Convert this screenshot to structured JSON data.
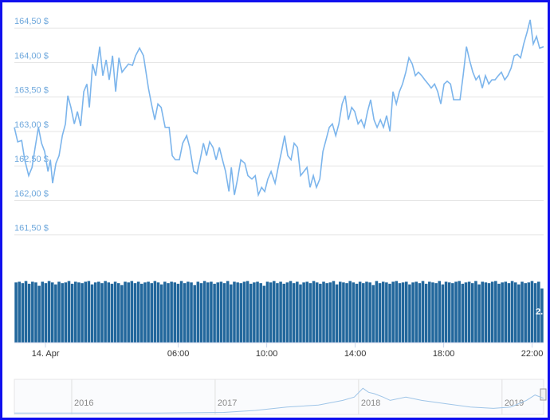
{
  "chart_data": [
    {
      "type": "line",
      "color": "#7cb5ec",
      "x": [
        -1.41,
        -1.26,
        -1.08,
        -0.94,
        -0.76,
        -0.61,
        -0.47,
        -0.32,
        -0.18,
        -0.04,
        0.11,
        0.22,
        0.32,
        0.47,
        0.61,
        0.76,
        0.9,
        1.01,
        1.15,
        1.3,
        1.44,
        1.59,
        1.73,
        1.87,
        1.98,
        2.13,
        2.27,
        2.45,
        2.59,
        2.74,
        2.88,
        3.03,
        3.17,
        3.32,
        3.46,
        3.6,
        3.75,
        3.93,
        4.07,
        4.25,
        4.43,
        4.65,
        4.79,
        4.94,
        5.08,
        5.23,
        5.41,
        5.59,
        5.73,
        5.87,
        6.05,
        6.2,
        6.38,
        6.52,
        6.7,
        6.85,
        6.99,
        7.14,
        7.28,
        7.42,
        7.57,
        7.71,
        7.86,
        8.0,
        8.14,
        8.29,
        8.4,
        8.54,
        8.68,
        8.83,
        9.01,
        9.15,
        9.33,
        9.48,
        9.62,
        9.77,
        9.91,
        10.05,
        10.2,
        10.38,
        10.52,
        10.67,
        10.81,
        10.95,
        11.1,
        11.24,
        11.39,
        11.53,
        11.68,
        11.82,
        11.96,
        12.11,
        12.25,
        12.4,
        12.54,
        12.68,
        12.83,
        12.97,
        13.12,
        13.26,
        13.41,
        13.55,
        13.69,
        13.84,
        13.98,
        14.13,
        14.27,
        14.41,
        14.56,
        14.7,
        14.85,
        14.99,
        15.14,
        15.28,
        15.42,
        15.57,
        15.71,
        15.86,
        16.0,
        16.14,
        16.29,
        16.43,
        16.58,
        16.72,
        16.86,
        17.01,
        17.15,
        17.3,
        17.44,
        17.59,
        17.73,
        17.87,
        18.02,
        18.16,
        18.31,
        18.45,
        18.59,
        18.74,
        18.88,
        19.03,
        19.17,
        19.32,
        19.46,
        19.6,
        19.75,
        19.89,
        20.04,
        20.18,
        20.32,
        20.47,
        20.61,
        20.76,
        20.9,
        21.05,
        21.19,
        21.33,
        21.48,
        21.62,
        21.77,
        21.91,
        22.05,
        22.2,
        22.34,
        22.52
      ],
      "values": [
        163.06,
        162.85,
        162.87,
        162.59,
        162.36,
        162.48,
        162.77,
        163.06,
        162.83,
        162.71,
        162.42,
        162.59,
        162.25,
        162.54,
        162.65,
        162.94,
        163.11,
        163.52,
        163.35,
        163.11,
        163.29,
        163.08,
        163.58,
        163.69,
        163.35,
        163.98,
        163.81,
        164.23,
        163.81,
        164.04,
        163.75,
        164.1,
        163.58,
        164.07,
        163.86,
        163.92,
        163.98,
        163.96,
        164.1,
        164.21,
        164.1,
        163.63,
        163.4,
        163.17,
        163.4,
        163.35,
        163.06,
        163.06,
        162.65,
        162.59,
        162.59,
        162.83,
        162.94,
        162.77,
        162.42,
        162.39,
        162.59,
        162.83,
        162.65,
        162.85,
        162.77,
        162.59,
        162.77,
        162.59,
        162.42,
        162.13,
        162.48,
        162.08,
        162.31,
        162.59,
        162.54,
        162.36,
        162.31,
        162.36,
        162.08,
        162.19,
        162.13,
        162.31,
        162.42,
        162.25,
        162.48,
        162.71,
        162.94,
        162.65,
        162.59,
        162.83,
        162.77,
        162.36,
        162.42,
        162.48,
        162.19,
        162.36,
        162.19,
        162.31,
        162.71,
        162.88,
        163.06,
        163.11,
        162.94,
        163.11,
        163.4,
        163.52,
        163.17,
        163.35,
        163.29,
        163.11,
        163.17,
        163.06,
        163.29,
        163.46,
        163.17,
        163.06,
        163.17,
        163.06,
        163.23,
        163.0,
        163.58,
        163.4,
        163.58,
        163.69,
        163.86,
        164.07,
        163.98,
        163.81,
        163.86,
        163.81,
        163.75,
        163.69,
        163.63,
        163.69,
        163.58,
        163.4,
        163.69,
        163.73,
        163.69,
        163.46,
        163.46,
        163.46,
        163.81,
        164.23,
        164.04,
        163.86,
        163.75,
        163.81,
        163.63,
        163.81,
        163.69,
        163.75,
        163.75,
        163.81,
        163.86,
        163.75,
        163.81,
        163.92,
        164.1,
        164.12,
        164.07,
        164.27,
        164.44,
        164.62,
        164.27,
        164.38,
        164.21,
        164.23
      ],
      "xlim": [
        -1.41,
        22.52
      ],
      "xticks": [
        {
          "value": 0,
          "label": "14. Apr"
        },
        {
          "value": 6,
          "label": "06:00"
        },
        {
          "value": 10,
          "label": "10:00"
        },
        {
          "value": 14,
          "label": "14:00"
        },
        {
          "value": 18,
          "label": "18:00"
        },
        {
          "value": 22,
          "label": "22:00"
        }
      ],
      "ylim": [
        161.0,
        164.7
      ],
      "yticks": [
        {
          "value": 161.5,
          "label": "161,50 $"
        },
        {
          "value": 162,
          "label": "162,00 $"
        },
        {
          "value": 162.5,
          "label": "162,50 $"
        },
        {
          "value": 163,
          "label": "163,00 $"
        },
        {
          "value": 163.5,
          "label": "163,50 $"
        },
        {
          "value": 164,
          "label": "164,00 $"
        },
        {
          "value": 164.5,
          "label": "164,50 $"
        }
      ],
      "grid": true
    },
    {
      "type": "bar",
      "color": "#22679c",
      "ylim": [
        0,
        100
      ],
      "annotation": "2.",
      "values": [
        89,
        90,
        88,
        91,
        87,
        90,
        89,
        84,
        90,
        88,
        91,
        89,
        86,
        90,
        88,
        89,
        91,
        87,
        90,
        89,
        88,
        90,
        91,
        86,
        89,
        90,
        88,
        91,
        89,
        87,
        90,
        88,
        85,
        90,
        89,
        91,
        88,
        90,
        87,
        89,
        90,
        88,
        91,
        89,
        86,
        90,
        88,
        90,
        89,
        87,
        91,
        88,
        90,
        89,
        85,
        90,
        88,
        91,
        89,
        90,
        87,
        89,
        90,
        88,
        91,
        86,
        90,
        89,
        88,
        90,
        91,
        87,
        89,
        90,
        88,
        84,
        90,
        89,
        91,
        88,
        90,
        87,
        89,
        91,
        88,
        90,
        86,
        89,
        90,
        88,
        91,
        89,
        87,
        90,
        88,
        89,
        91,
        86,
        90,
        89,
        88,
        91,
        89,
        87,
        90,
        88,
        90,
        89,
        85,
        91,
        88,
        90,
        89,
        87,
        90,
        91,
        88,
        89,
        90,
        86,
        89,
        90,
        88,
        91,
        87,
        90,
        89,
        88,
        91,
        86,
        90,
        89,
        88,
        90,
        91,
        87,
        89,
        90,
        88,
        91,
        86,
        90,
        89,
        88,
        90,
        91,
        87,
        89,
        90,
        88,
        91,
        89,
        86,
        90,
        88,
        89,
        91,
        88,
        90,
        80
      ]
    },
    {
      "type": "line",
      "color": "#9fc5e8",
      "x": [
        2015.6,
        2016.06,
        2016.61,
        2017.06,
        2017.28,
        2017.5,
        2017.72,
        2017.89,
        2017.97,
        2018.03,
        2018.07,
        2018.11,
        2018.17,
        2018.22,
        2018.33,
        2018.44,
        2018.61,
        2018.78,
        2018.94,
        2019.06,
        2019.17,
        2019.23,
        2019.29
      ],
      "values": [
        4,
        4,
        4,
        6,
        12,
        22,
        28,
        42,
        52,
        78,
        66,
        62,
        52,
        42,
        52,
        42,
        32,
        22,
        18,
        22,
        42,
        58,
        48
      ],
      "xlim": [
        2015.6,
        2019.29
      ],
      "ylim": [
        0,
        100
      ],
      "xticks": [
        2016,
        2017,
        2018,
        2019
      ]
    }
  ]
}
